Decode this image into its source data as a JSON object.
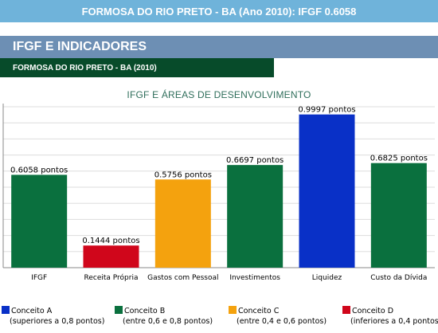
{
  "header": {
    "banner": "FORMOSA DO RIO PRETO - BA (Ano 2010): IFGF 0.6058",
    "section_title": "IFGF E INDICADORES",
    "subtitle": "FORMOSA DO RIO PRETO - BA (2010)"
  },
  "chart_data": {
    "type": "bar",
    "title": "IFGF E ÁREAS DE DESENVOLVIMENTO",
    "categories": [
      "IFGF",
      "Receita Própria",
      "Gastos com Pessoal",
      "Investimentos",
      "Liquidez",
      "Custo da Dívida"
    ],
    "values": [
      0.6058,
      0.1444,
      0.5756,
      0.6697,
      0.9997,
      0.6825
    ],
    "value_labels": [
      "0.6058 pontos",
      "0.1444 pontos",
      "0.5756 pontos",
      "0.6697 pontos",
      "0.9997 pontos",
      "0.6825 pontos"
    ],
    "colors": [
      "#0a703e",
      "#d0061b",
      "#f4a20e",
      "#0a703e",
      "#0930c7",
      "#0a703e"
    ],
    "ylim": [
      0,
      1.05
    ],
    "grid": true,
    "legend_position": "bottom"
  },
  "legend": [
    {
      "label": "Conceito A",
      "desc": "(superiores a 0,8 pontos)",
      "color": "#0930c7"
    },
    {
      "label": "Conceito B",
      "desc": "(entre 0,6 e 0,8 pontos)",
      "color": "#0a703e"
    },
    {
      "label": "Conceito C",
      "desc": "(entre 0,4 e 0,6 pontos)",
      "color": "#f4a20e"
    },
    {
      "label": "Conceito D",
      "desc": "(inferiores a 0,4 pontos)",
      "color": "#d0061b"
    }
  ]
}
